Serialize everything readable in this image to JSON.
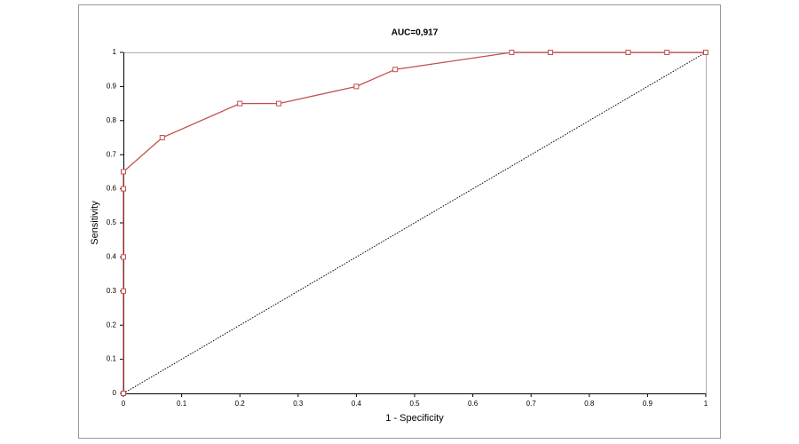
{
  "chart_data": {
    "type": "line",
    "title": "AUC=0,917",
    "x_label": "1 - Specificity",
    "y_label": "Sensitivity",
    "series": [
      {
        "color": "#c0504d",
        "marker": "square",
        "x": [
          0,
          0,
          0,
          0,
          0,
          0.0667,
          0.2,
          0.2667,
          0.4,
          0.4667,
          0.6667,
          0.7333,
          0.8667,
          0.9333,
          1
        ],
        "values": [
          0,
          0.3,
          0.4,
          0.6,
          0.65,
          0.75,
          0.85,
          0.85,
          0.9,
          0.95,
          1,
          1,
          1,
          1,
          1
        ]
      },
      {
        "color": "#000000",
        "line_style": "dotted",
        "x": [
          0,
          1
        ],
        "values": [
          0,
          1
        ]
      }
    ],
    "xlim": [
      0,
      1
    ],
    "ylim": [
      0,
      1
    ],
    "xticks": [
      0,
      0.1,
      0.2,
      0.3,
      0.4,
      0.5,
      0.6,
      0.7,
      0.8,
      0.9,
      1
    ],
    "yticks": [
      0,
      0.1,
      0.2,
      0.3,
      0.4,
      0.5,
      0.6,
      0.7,
      0.8,
      0.9,
      1
    ],
    "grid": false
  }
}
